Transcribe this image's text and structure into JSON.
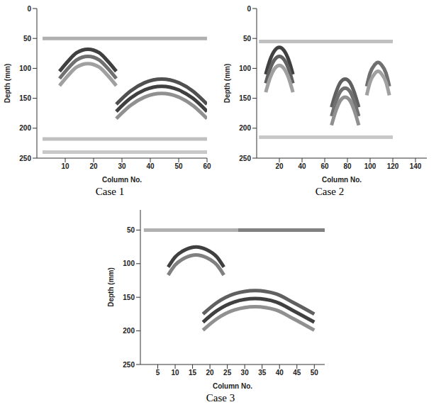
{
  "chart_data": [
    {
      "type": "line",
      "title": "Case 1",
      "x_label": "Column No.",
      "y_label": "Depth (mm)",
      "xlim": [
        0,
        60
      ],
      "xticks": [
        10,
        20,
        30,
        40,
        50,
        60
      ],
      "ylim": [
        0,
        250
      ],
      "yticks": [
        0,
        50,
        100,
        150,
        200,
        250
      ],
      "series": [
        {
          "color": "#b0b0b0",
          "x": [
            2,
            60
          ],
          "values": [
            50,
            50
          ]
        },
        {
          "color": "#c0c0c0",
          "x": [
            2,
            60
          ],
          "values": [
            218,
            218
          ]
        },
        {
          "color": "#c8c8c8",
          "x": [
            2,
            60
          ],
          "values": [
            240,
            240
          ]
        },
        {
          "color": "#404040",
          "x": [
            8,
            11,
            14,
            18,
            22,
            25,
            28
          ],
          "values": [
            105,
            88,
            74,
            68,
            74,
            88,
            105
          ]
        },
        {
          "color": "#707070",
          "x": [
            8,
            11,
            14,
            18,
            22,
            25,
            28
          ],
          "values": [
            117,
            100,
            86,
            80,
            86,
            100,
            117
          ]
        },
        {
          "color": "#a0a0a0",
          "x": [
            8,
            11,
            14,
            18,
            22,
            25,
            28
          ],
          "values": [
            129,
            112,
            98,
            92,
            98,
            112,
            129
          ]
        },
        {
          "color": "#505050",
          "x": [
            28,
            33,
            38,
            44,
            50,
            55,
            60
          ],
          "values": [
            160,
            138,
            124,
            118,
            124,
            138,
            160
          ]
        },
        {
          "color": "#404040",
          "x": [
            28,
            33,
            38,
            44,
            50,
            55,
            60
          ],
          "values": [
            172,
            150,
            136,
            130,
            136,
            150,
            172
          ]
        },
        {
          "color": "#909090",
          "x": [
            28,
            33,
            38,
            44,
            50,
            55,
            60
          ],
          "values": [
            184,
            162,
            148,
            142,
            148,
            162,
            184
          ]
        }
      ]
    },
    {
      "type": "line",
      "title": "Case 2",
      "x_label": "Column No.",
      "y_label": "Depth (mm)",
      "xlim": [
        0,
        150
      ],
      "xticks": [
        20,
        40,
        60,
        80,
        100,
        120,
        140
      ],
      "ylim": [
        0,
        250
      ],
      "yticks": [
        0,
        50,
        100,
        150,
        200,
        250
      ],
      "series": [
        {
          "color": "#c0c0c0",
          "x": [
            2,
            120
          ],
          "values": [
            55,
            55
          ]
        },
        {
          "color": "#c8c8c8",
          "x": [
            2,
            120
          ],
          "values": [
            215,
            215
          ]
        },
        {
          "color": "#404040",
          "x": [
            8,
            12,
            16,
            20,
            24,
            28,
            32
          ],
          "values": [
            110,
            85,
            70,
            65,
            70,
            85,
            110
          ]
        },
        {
          "color": "#606060",
          "x": [
            8,
            12,
            16,
            20,
            24,
            28,
            32
          ],
          "values": [
            125,
            100,
            85,
            80,
            85,
            100,
            125
          ]
        },
        {
          "color": "#a0a0a0",
          "x": [
            8,
            12,
            16,
            20,
            24,
            28,
            32
          ],
          "values": [
            140,
            115,
            100,
            95,
            100,
            115,
            140
          ]
        },
        {
          "color": "#606060",
          "x": [
            66,
            70,
            74,
            78,
            82,
            86,
            90
          ],
          "values": [
            165,
            140,
            123,
            118,
            123,
            140,
            165
          ]
        },
        {
          "color": "#707070",
          "x": [
            66,
            70,
            74,
            78,
            82,
            86,
            90
          ],
          "values": [
            180,
            155,
            138,
            133,
            138,
            155,
            180
          ]
        },
        {
          "color": "#909090",
          "x": [
            66,
            70,
            74,
            78,
            82,
            86,
            90
          ],
          "values": [
            195,
            170,
            153,
            148,
            153,
            170,
            195
          ]
        },
        {
          "color": "#707070",
          "x": [
            97,
            100,
            104,
            107,
            110,
            114,
            117
          ],
          "values": [
            130,
            108,
            94,
            90,
            94,
            108,
            130
          ]
        },
        {
          "color": "#a0a0a0",
          "x": [
            97,
            100,
            104,
            107,
            110,
            114,
            117
          ],
          "values": [
            145,
            123,
            109,
            105,
            109,
            123,
            145
          ]
        }
      ]
    },
    {
      "type": "line",
      "title": "Case 3",
      "x_label": "Column No.",
      "y_label": "Depth (mm)",
      "xlim": [
        0,
        53
      ],
      "xticks": [
        5,
        10,
        15,
        20,
        25,
        30,
        35,
        40,
        45,
        50
      ],
      "ylim": [
        20,
        250
      ],
      "yticks": [
        50,
        100,
        150,
        200,
        250
      ],
      "series": [
        {
          "color": "#808080",
          "x": [
            28,
            53
          ],
          "values": [
            50,
            50
          ]
        },
        {
          "color": "#b0b0b0",
          "x": [
            1,
            28
          ],
          "values": [
            50,
            50
          ]
        },
        {
          "color": "#404040",
          "x": [
            8,
            10,
            13,
            16,
            19,
            22,
            24
          ],
          "values": [
            105,
            90,
            79,
            75,
            79,
            90,
            105
          ]
        },
        {
          "color": "#808080",
          "x": [
            8,
            10,
            13,
            16,
            19,
            22,
            24
          ],
          "values": [
            117,
            102,
            91,
            87,
            91,
            102,
            117
          ]
        },
        {
          "color": "#606060",
          "x": [
            18,
            22,
            27,
            33,
            39,
            44,
            50
          ],
          "values": [
            175,
            158,
            145,
            140,
            145,
            158,
            175
          ]
        },
        {
          "color": "#404040",
          "x": [
            18,
            22,
            27,
            33,
            39,
            44,
            50
          ],
          "values": [
            187,
            170,
            157,
            152,
            157,
            170,
            187
          ]
        },
        {
          "color": "#909090",
          "x": [
            18,
            22,
            27,
            33,
            39,
            44,
            50
          ],
          "values": [
            199,
            182,
            169,
            164,
            169,
            182,
            199
          ]
        }
      ]
    }
  ]
}
